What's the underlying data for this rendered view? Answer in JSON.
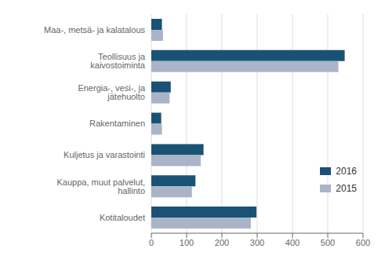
{
  "chart_data": {
    "type": "bar",
    "orientation": "horizontal",
    "categories": [
      "Maa-, metsä- ja kalatalous",
      "Teollisuus ja kaivostoiminta",
      "Energia-, vesi-, ja jätehuolto",
      "Rakentaminen",
      "Kuljetus ja varastointi",
      "Kauppa, muut palvelut, hallinto",
      "Kotitaloudet"
    ],
    "series": [
      {
        "name": "2016",
        "color": "#1a5276",
        "values": [
          30,
          548,
          55,
          28,
          148,
          125,
          298
        ]
      },
      {
        "name": "2015",
        "color": "#aab4c8",
        "values": [
          33,
          530,
          52,
          30,
          140,
          115,
          282
        ]
      }
    ],
    "xlim": [
      0,
      600
    ],
    "xticks": [
      0,
      100,
      200,
      300,
      400,
      500,
      600
    ],
    "grid": true,
    "legend": "lower right"
  }
}
